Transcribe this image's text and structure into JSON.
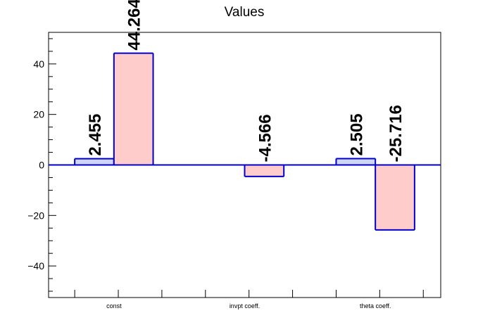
{
  "chart_data": {
    "type": "bar",
    "title": "Values",
    "xlabel": "",
    "ylabel": "",
    "ylim": [
      -52.5,
      52.5
    ],
    "yticks": [
      -40,
      -20,
      0,
      20,
      40
    ],
    "ytick_labels": [
      "−40",
      "−20",
      "0",
      "20",
      "40"
    ],
    "categories": [
      "const",
      "invpt coeff.",
      "theta coeff."
    ],
    "grid": false,
    "legend": "none",
    "series": [
      {
        "values": [
          2.455,
          0,
          2.505
        ],
        "labels": [
          "2.455",
          "",
          "2.505"
        ],
        "fill": "#cfd6f5",
        "stroke": "#0000cc"
      },
      {
        "values": [
          44.264,
          -4.566,
          -25.716
        ],
        "labels": [
          "44.264",
          "-4.566",
          "-25.716"
        ],
        "fill": "#ffcccc",
        "stroke": "#0000cc"
      }
    ]
  }
}
